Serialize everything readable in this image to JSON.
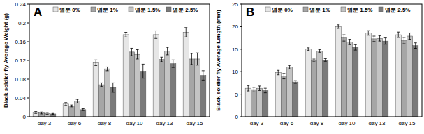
{
  "chart_data": [
    {
      "type": "bar",
      "title": "A",
      "y_label": "Black soldier fly Average Weight (g)",
      "categories": [
        "day 3",
        "day 6",
        "day 8",
        "day 10",
        "day 13",
        "day 15"
      ],
      "series": [
        {
          "name": "염분 0%",
          "color": "#e6e6e6",
          "values": [
            0.009,
            0.027,
            0.115,
            0.175,
            0.175,
            0.18
          ],
          "errors": [
            0.002,
            0.003,
            0.006,
            0.005,
            0.008,
            0.01
          ]
        },
        {
          "name": "염분 1%",
          "color": "#a6a6a6",
          "values": [
            0.008,
            0.023,
            0.068,
            0.138,
            0.122,
            0.123
          ],
          "errors": [
            0.002,
            0.002,
            0.004,
            0.008,
            0.005,
            0.012
          ]
        },
        {
          "name": "염분 1.5%",
          "color": "#c4c4c4",
          "values": [
            0.007,
            0.033,
            0.102,
            0.133,
            0.14,
            0.123
          ],
          "errors": [
            0.002,
            0.004,
            0.004,
            0.01,
            0.008,
            0.013
          ]
        },
        {
          "name": "염분 2.5%",
          "color": "#7a7a7a",
          "values": [
            0.006,
            0.015,
            0.062,
            0.097,
            0.113,
            0.088
          ],
          "errors": [
            0.001,
            0.002,
            0.01,
            0.015,
            0.008,
            0.01
          ]
        }
      ],
      "ylim": [
        0,
        0.24
      ],
      "yticks": [
        0,
        0.04,
        0.08,
        0.12,
        0.16,
        0.2,
        0.24
      ],
      "grid": false,
      "legend": "top"
    },
    {
      "type": "bar",
      "title": "B",
      "y_label": "Black soldier fly Average Length (mm)",
      "categories": [
        "day 3",
        "day 6",
        "day 8",
        "day 10",
        "day 13",
        "day 15"
      ],
      "series": [
        {
          "name": "염분 0%",
          "color": "#e6e6e6",
          "values": [
            6.3,
            9.8,
            15.0,
            20.0,
            18.6,
            18.2
          ],
          "errors": [
            0.6,
            0.5,
            0.3,
            0.4,
            0.5,
            0.6
          ]
        },
        {
          "name": "염분 1%",
          "color": "#a6a6a6",
          "values": [
            6.0,
            9.0,
            12.5,
            17.5,
            17.3,
            16.9
          ],
          "errors": [
            0.5,
            0.6,
            0.3,
            0.7,
            0.6,
            0.7
          ]
        },
        {
          "name": "염분 1.5%",
          "color": "#c4c4c4",
          "values": [
            6.3,
            11.0,
            14.6,
            16.6,
            17.4,
            17.9
          ],
          "errors": [
            0.5,
            0.4,
            0.3,
            0.6,
            0.6,
            0.7
          ]
        },
        {
          "name": "염분 2.5%",
          "color": "#7a7a7a",
          "values": [
            5.8,
            7.7,
            12.6,
            15.4,
            16.8,
            15.8
          ],
          "errors": [
            0.5,
            0.3,
            0.3,
            0.6,
            0.7,
            0.6
          ]
        }
      ],
      "ylim": [
        0,
        25
      ],
      "yticks": [
        0,
        5,
        10,
        15,
        20,
        25
      ],
      "grid": false,
      "legend": "top"
    }
  ]
}
